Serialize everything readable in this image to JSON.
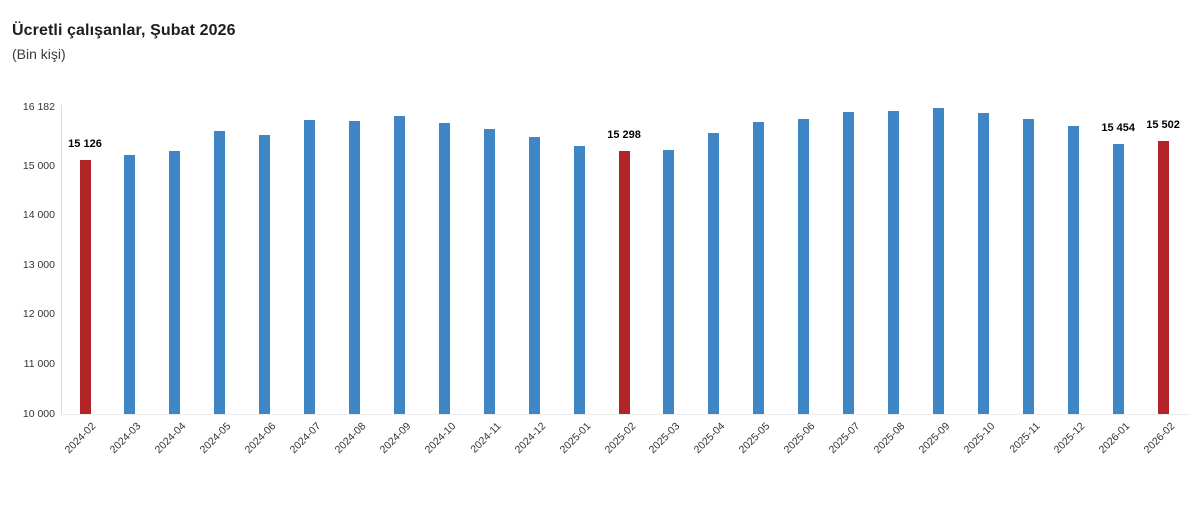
{
  "header": {
    "title": "Ücretli çalışanlar, Şubat 2026",
    "subtitle": "(Bin kişi)"
  },
  "colors": {
    "bar_default": "#3E86C6",
    "bar_highlight": "#B22428",
    "axis_line": "#DCDCDC",
    "text": "#333333"
  },
  "chart_data": {
    "type": "bar",
    "title": "Ücretli çalışanlar, Şubat 2026",
    "subtitle": "(Bin kişi)",
    "categories": [
      "2024-02",
      "2024-03",
      "2024-04",
      "2024-05",
      "2024-06",
      "2024-07",
      "2024-08",
      "2024-09",
      "2024-10",
      "2024-11",
      "2024-12",
      "2025-01",
      "2025-02",
      "2025-03",
      "2025-04",
      "2025-05",
      "2025-06",
      "2025-07",
      "2025-08",
      "2025-09",
      "2025-10",
      "2025-11",
      "2025-12",
      "2026-01",
      "2026-02"
    ],
    "values": [
      15126,
      15220,
      15300,
      15710,
      15630,
      15930,
      15910,
      16010,
      15870,
      15750,
      15590,
      15405,
      15298,
      15325,
      15670,
      15890,
      15950,
      16090,
      16110,
      16182,
      16070,
      15950,
      15810,
      15454,
      15502
    ],
    "highlighted_categories": [
      "2024-02",
      "2025-02",
      "2026-02"
    ],
    "data_labels": {
      "2024-02": "15 126",
      "2025-02": "15 298",
      "2026-01": "15 454",
      "2026-02": "15 502"
    },
    "ylim": [
      10000,
      16182
    ],
    "yticks": [
      16182,
      15000,
      14000,
      13000,
      12000,
      11000,
      10000
    ],
    "ytick_labels": [
      "16 182",
      "15 000",
      "14 000",
      "13 000",
      "12 000",
      "11 000",
      "10 000"
    ],
    "xlabel": "",
    "ylabel": "",
    "grid": false,
    "legend": false
  }
}
